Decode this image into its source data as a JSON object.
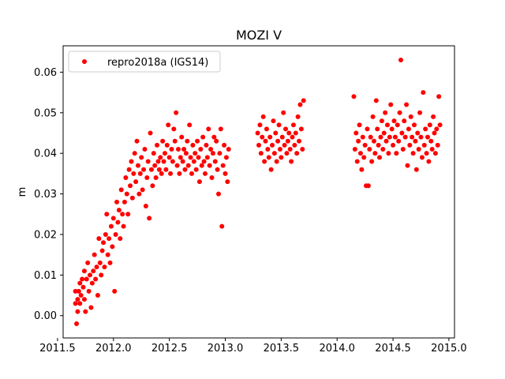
{
  "chart_data": {
    "type": "scatter",
    "title": "MOZI V",
    "xlabel": "",
    "ylabel": "m",
    "xlim": [
      2011.55,
      2015.05
    ],
    "ylim": [
      -0.0055,
      0.0665
    ],
    "x_ticks": [
      2011.5,
      2012.0,
      2012.5,
      2013.0,
      2013.5,
      2014.0,
      2014.5,
      2015.0
    ],
    "x_tick_labels": [
      "2011.5",
      "2012.0",
      "2012.5",
      "2013.0",
      "2013.5",
      "2014.0",
      "2014.5",
      "2015.0"
    ],
    "y_ticks": [
      0.0,
      0.01,
      0.02,
      0.03,
      0.04,
      0.05,
      0.06
    ],
    "y_tick_labels": [
      "0.00",
      "0.01",
      "0.02",
      "0.03",
      "0.04",
      "0.05",
      "0.06"
    ],
    "legend_position": "top-left",
    "grid": false,
    "series": [
      {
        "name": "repro2018a (IGS14)",
        "color": "#ff0000",
        "marker": "circle",
        "points": [
          [
            2011.66,
            0.003
          ],
          [
            2011.66,
            0.006
          ],
          [
            2011.67,
            -0.002
          ],
          [
            2011.68,
            0.001
          ],
          [
            2011.68,
            0.004
          ],
          [
            2011.69,
            0.006
          ],
          [
            2011.7,
            0.008
          ],
          [
            2011.7,
            0.003
          ],
          [
            2011.71,
            0.005
          ],
          [
            2011.72,
            0.009
          ],
          [
            2011.73,
            0.007
          ],
          [
            2011.74,
            0.011
          ],
          [
            2011.74,
            0.004
          ],
          [
            2011.75,
            0.001
          ],
          [
            2011.76,
            0.009
          ],
          [
            2011.77,
            0.013
          ],
          [
            2011.78,
            0.006
          ],
          [
            2011.79,
            0.01
          ],
          [
            2011.8,
            0.002
          ],
          [
            2011.81,
            0.008
          ],
          [
            2011.82,
            0.011
          ],
          [
            2011.83,
            0.015
          ],
          [
            2011.84,
            0.009
          ],
          [
            2011.85,
            0.012
          ],
          [
            2011.86,
            0.005
          ],
          [
            2011.87,
            0.019
          ],
          [
            2011.88,
            0.013
          ],
          [
            2011.89,
            0.01
          ],
          [
            2011.9,
            0.016
          ],
          [
            2011.91,
            0.018
          ],
          [
            2011.92,
            0.012
          ],
          [
            2011.93,
            0.02
          ],
          [
            2011.94,
            0.025
          ],
          [
            2011.95,
            0.015
          ],
          [
            2011.96,
            0.019
          ],
          [
            2011.97,
            0.013
          ],
          [
            2011.98,
            0.022
          ],
          [
            2011.99,
            0.017
          ],
          [
            2012.0,
            0.024
          ],
          [
            2012.01,
            0.006
          ],
          [
            2012.02,
            0.02
          ],
          [
            2012.03,
            0.028
          ],
          [
            2012.04,
            0.023
          ],
          [
            2012.05,
            0.026
          ],
          [
            2012.06,
            0.019
          ],
          [
            2012.07,
            0.031
          ],
          [
            2012.08,
            0.025
          ],
          [
            2012.09,
            0.022
          ],
          [
            2012.1,
            0.028
          ],
          [
            2012.11,
            0.034
          ],
          [
            2012.12,
            0.03
          ],
          [
            2012.13,
            0.025
          ],
          [
            2012.14,
            0.036
          ],
          [
            2012.15,
            0.032
          ],
          [
            2012.16,
            0.038
          ],
          [
            2012.17,
            0.029
          ],
          [
            2012.18,
            0.035
          ],
          [
            2012.19,
            0.04
          ],
          [
            2012.2,
            0.033
          ],
          [
            2012.21,
            0.043
          ],
          [
            2012.22,
            0.037
          ],
          [
            2012.23,
            0.03
          ],
          [
            2012.24,
            0.035
          ],
          [
            2012.25,
            0.039
          ],
          [
            2012.26,
            0.031
          ],
          [
            2012.27,
            0.036
          ],
          [
            2012.28,
            0.041
          ],
          [
            2012.29,
            0.027
          ],
          [
            2012.3,
            0.034
          ],
          [
            2012.31,
            0.038
          ],
          [
            2012.32,
            0.024
          ],
          [
            2012.33,
            0.045
          ],
          [
            2012.34,
            0.036
          ],
          [
            2012.35,
            0.032
          ],
          [
            2012.36,
            0.04
          ],
          [
            2012.37,
            0.037
          ],
          [
            2012.38,
            0.034
          ],
          [
            2012.39,
            0.042
          ],
          [
            2012.4,
            0.038
          ],
          [
            2012.41,
            0.036
          ],
          [
            2012.42,
            0.039
          ],
          [
            2012.43,
            0.035
          ],
          [
            2012.44,
            0.043
          ],
          [
            2012.45,
            0.038
          ],
          [
            2012.46,
            0.04
          ],
          [
            2012.47,
            0.036
          ],
          [
            2012.48,
            0.042
          ],
          [
            2012.49,
            0.047
          ],
          [
            2012.5,
            0.039
          ],
          [
            2012.51,
            0.035
          ],
          [
            2012.52,
            0.041
          ],
          [
            2012.53,
            0.038
          ],
          [
            2012.54,
            0.046
          ],
          [
            2012.55,
            0.043
          ],
          [
            2012.56,
            0.05
          ],
          [
            2012.57,
            0.037
          ],
          [
            2012.58,
            0.041
          ],
          [
            2012.59,
            0.035
          ],
          [
            2012.6,
            0.039
          ],
          [
            2012.61,
            0.044
          ],
          [
            2012.62,
            0.038
          ],
          [
            2012.63,
            0.041
          ],
          [
            2012.64,
            0.036
          ],
          [
            2012.65,
            0.04
          ],
          [
            2012.66,
            0.043
          ],
          [
            2012.67,
            0.037
          ],
          [
            2012.68,
            0.047
          ],
          [
            2012.69,
            0.039
          ],
          [
            2012.7,
            0.035
          ],
          [
            2012.71,
            0.042
          ],
          [
            2012.72,
            0.038
          ],
          [
            2012.73,
            0.04
          ],
          [
            2012.74,
            0.036
          ],
          [
            2012.75,
            0.043
          ],
          [
            2012.76,
            0.039
          ],
          [
            2012.77,
            0.033
          ],
          [
            2012.78,
            0.041
          ],
          [
            2012.79,
            0.037
          ],
          [
            2012.8,
            0.044
          ],
          [
            2012.81,
            0.038
          ],
          [
            2012.82,
            0.035
          ],
          [
            2012.83,
            0.042
          ],
          [
            2012.84,
            0.039
          ],
          [
            2012.85,
            0.046
          ],
          [
            2012.86,
            0.037
          ],
          [
            2012.87,
            0.041
          ],
          [
            2012.88,
            0.034
          ],
          [
            2012.89,
            0.04
          ],
          [
            2012.9,
            0.044
          ],
          [
            2012.91,
            0.038
          ],
          [
            2012.92,
            0.043
          ],
          [
            2012.93,
            0.036
          ],
          [
            2012.94,
            0.03
          ],
          [
            2012.95,
            0.04
          ],
          [
            2012.96,
            0.046
          ],
          [
            2012.97,
            0.022
          ],
          [
            2012.98,
            0.037
          ],
          [
            2012.99,
            0.042
          ],
          [
            2013.0,
            0.035
          ],
          [
            2013.01,
            0.039
          ],
          [
            2013.02,
            0.033
          ],
          [
            2013.03,
            0.041
          ],
          [
            2013.29,
            0.045
          ],
          [
            2013.3,
            0.042
          ],
          [
            2013.31,
            0.047
          ],
          [
            2013.32,
            0.04
          ],
          [
            2013.33,
            0.044
          ],
          [
            2013.34,
            0.049
          ],
          [
            2013.35,
            0.038
          ],
          [
            2013.36,
            0.043
          ],
          [
            2013.37,
            0.046
          ],
          [
            2013.38,
            0.041
          ],
          [
            2013.39,
            0.039
          ],
          [
            2013.4,
            0.044
          ],
          [
            2013.41,
            0.036
          ],
          [
            2013.42,
            0.042
          ],
          [
            2013.43,
            0.048
          ],
          [
            2013.44,
            0.04
          ],
          [
            2013.45,
            0.045
          ],
          [
            2013.46,
            0.038
          ],
          [
            2013.47,
            0.043
          ],
          [
            2013.48,
            0.047
          ],
          [
            2013.49,
            0.041
          ],
          [
            2013.5,
            0.039
          ],
          [
            2013.51,
            0.044
          ],
          [
            2013.52,
            0.05
          ],
          [
            2013.53,
            0.042
          ],
          [
            2013.54,
            0.046
          ],
          [
            2013.55,
            0.04
          ],
          [
            2013.56,
            0.043
          ],
          [
            2013.57,
            0.045
          ],
          [
            2013.58,
            0.041
          ],
          [
            2013.59,
            0.038
          ],
          [
            2013.6,
            0.044
          ],
          [
            2013.61,
            0.047
          ],
          [
            2013.62,
            0.042
          ],
          [
            2013.63,
            0.045
          ],
          [
            2013.64,
            0.04
          ],
          [
            2013.65,
            0.049
          ],
          [
            2013.66,
            0.043
          ],
          [
            2013.67,
            0.052
          ],
          [
            2013.68,
            0.046
          ],
          [
            2013.69,
            0.041
          ],
          [
            2013.7,
            0.053
          ],
          [
            2014.15,
            0.054
          ],
          [
            2014.16,
            0.041
          ],
          [
            2014.17,
            0.045
          ],
          [
            2014.18,
            0.038
          ],
          [
            2014.19,
            0.043
          ],
          [
            2014.2,
            0.047
          ],
          [
            2014.21,
            0.04
          ],
          [
            2014.22,
            0.036
          ],
          [
            2014.23,
            0.044
          ],
          [
            2014.24,
            0.039
          ],
          [
            2014.25,
            0.042
          ],
          [
            2014.26,
            0.032
          ],
          [
            2014.27,
            0.046
          ],
          [
            2014.28,
            0.032
          ],
          [
            2014.29,
            0.041
          ],
          [
            2014.3,
            0.044
          ],
          [
            2014.31,
            0.038
          ],
          [
            2014.32,
            0.049
          ],
          [
            2014.33,
            0.043
          ],
          [
            2014.34,
            0.04
          ],
          [
            2014.35,
            0.053
          ],
          [
            2014.36,
            0.046
          ],
          [
            2014.37,
            0.042
          ],
          [
            2014.38,
            0.039
          ],
          [
            2014.39,
            0.044
          ],
          [
            2014.4,
            0.048
          ],
          [
            2014.41,
            0.041
          ],
          [
            2014.42,
            0.045
          ],
          [
            2014.43,
            0.05
          ],
          [
            2014.44,
            0.043
          ],
          [
            2014.45,
            0.047
          ],
          [
            2014.46,
            0.04
          ],
          [
            2014.47,
            0.044
          ],
          [
            2014.48,
            0.052
          ],
          [
            2014.49,
            0.046
          ],
          [
            2014.5,
            0.042
          ],
          [
            2014.51,
            0.048
          ],
          [
            2014.52,
            0.044
          ],
          [
            2014.53,
            0.04
          ],
          [
            2014.54,
            0.047
          ],
          [
            2014.55,
            0.043
          ],
          [
            2014.56,
            0.05
          ],
          [
            2014.57,
            0.063
          ],
          [
            2014.58,
            0.045
          ],
          [
            2014.59,
            0.041
          ],
          [
            2014.6,
            0.048
          ],
          [
            2014.61,
            0.044
          ],
          [
            2014.62,
            0.052
          ],
          [
            2014.63,
            0.037
          ],
          [
            2014.64,
            0.046
          ],
          [
            2014.65,
            0.042
          ],
          [
            2014.66,
            0.049
          ],
          [
            2014.67,
            0.044
          ],
          [
            2014.68,
            0.04
          ],
          [
            2014.69,
            0.047
          ],
          [
            2014.7,
            0.043
          ],
          [
            2014.71,
            0.036
          ],
          [
            2014.72,
            0.045
          ],
          [
            2014.73,
            0.041
          ],
          [
            2014.74,
            0.05
          ],
          [
            2014.75,
            0.044
          ],
          [
            2014.76,
            0.039
          ],
          [
            2014.77,
            0.055
          ],
          [
            2014.78,
            0.042
          ],
          [
            2014.79,
            0.046
          ],
          [
            2014.8,
            0.04
          ],
          [
            2014.81,
            0.044
          ],
          [
            2014.82,
            0.038
          ],
          [
            2014.83,
            0.047
          ],
          [
            2014.84,
            0.043
          ],
          [
            2014.85,
            0.041
          ],
          [
            2014.86,
            0.049
          ],
          [
            2014.87,
            0.045
          ],
          [
            2014.88,
            0.04
          ],
          [
            2014.89,
            0.046
          ],
          [
            2014.9,
            0.042
          ],
          [
            2014.91,
            0.054
          ],
          [
            2014.92,
            0.047
          ]
        ]
      }
    ]
  }
}
